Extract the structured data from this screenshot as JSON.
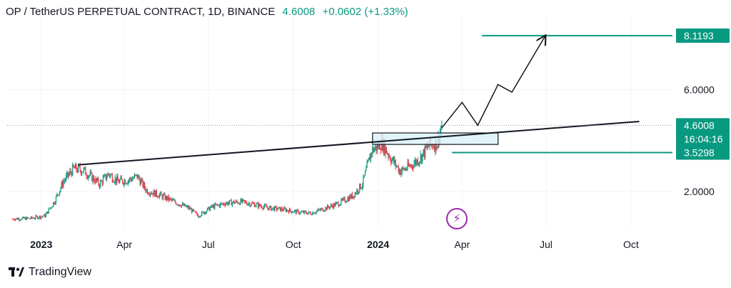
{
  "header": {
    "symbol": "OP / TetherUS PERPETUAL CONTRACT, 1D, BINANCE",
    "price": "4.6008",
    "change": "+0.0602 (+1.33%)"
  },
  "footer": {
    "brand": "TradingView",
    "logo_icon": "tradingview-logo-icon"
  },
  "colors": {
    "up": "#089981",
    "down": "#f23645",
    "teal": "#089981",
    "text": "#131722",
    "grid": "#f0f3fa",
    "box_fill": "#d8f1f7",
    "bolt": "#9c27b0"
  },
  "chart_data": {
    "type": "candlestick",
    "title": "",
    "x_tick_labels": [
      "2023",
      "Apr",
      "Jul",
      "Oct",
      "2024",
      "Apr",
      "Jul",
      "Oct"
    ],
    "y_tick_labels": [
      "6.0000",
      "2.0000"
    ],
    "y_ticks": [
      6.0,
      2.0
    ],
    "price_labels": {
      "target": "8.1193",
      "last_price": "4.6008",
      "countdown": "16:04:16",
      "support": "3.5298"
    },
    "levels": {
      "target": 8.1193,
      "last": 4.6008,
      "support": 3.5298
    },
    "price_path": [
      [
        "2022-12-01",
        0.93
      ],
      [
        "2022-12-20",
        0.95
      ],
      [
        "2023-01-05",
        1.05
      ],
      [
        "2023-01-15",
        1.6
      ],
      [
        "2023-01-25",
        2.4
      ],
      [
        "2023-02-05",
        2.9
      ],
      [
        "2023-02-15",
        2.85
      ],
      [
        "2023-02-25",
        2.55
      ],
      [
        "2023-03-05",
        2.3
      ],
      [
        "2023-03-15",
        2.7
      ],
      [
        "2023-03-25",
        2.4
      ],
      [
        "2023-04-05",
        2.45
      ],
      [
        "2023-04-15",
        2.6
      ],
      [
        "2023-04-25",
        2.05
      ],
      [
        "2023-05-10",
        1.85
      ],
      [
        "2023-05-25",
        1.6
      ],
      [
        "2023-06-10",
        1.35
      ],
      [
        "2023-06-20",
        1.05
      ],
      [
        "2023-07-05",
        1.4
      ],
      [
        "2023-07-20",
        1.55
      ],
      [
        "2023-08-05",
        1.6
      ],
      [
        "2023-08-20",
        1.5
      ],
      [
        "2023-09-05",
        1.35
      ],
      [
        "2023-09-20",
        1.3
      ],
      [
        "2023-10-05",
        1.2
      ],
      [
        "2023-10-20",
        1.15
      ],
      [
        "2023-11-05",
        1.35
      ],
      [
        "2023-11-20",
        1.55
      ],
      [
        "2023-12-05",
        1.85
      ],
      [
        "2023-12-15",
        2.3
      ],
      [
        "2023-12-25",
        3.6
      ],
      [
        "2024-01-05",
        3.9
      ],
      [
        "2024-01-15",
        3.3
      ],
      [
        "2024-01-25",
        2.8
      ],
      [
        "2024-02-05",
        3.0
      ],
      [
        "2024-02-15",
        3.3
      ],
      [
        "2024-02-25",
        3.8
      ],
      [
        "2024-03-05",
        3.9
      ],
      [
        "2024-03-10",
        4.6
      ]
    ],
    "trendline": {
      "from": [
        "2023-02-10",
        3.05
      ],
      "to": [
        "2024-10-10",
        4.75
      ]
    },
    "demand_zone": {
      "from_date": "2023-12-26",
      "to_date": "2024-05-10",
      "top": 4.3,
      "bottom": 3.85
    },
    "projection_path": [
      [
        "2024-03-10",
        4.5
      ],
      [
        "2024-04-01",
        5.5
      ],
      [
        "2024-04-18",
        4.6
      ],
      [
        "2024-05-10",
        6.2
      ],
      [
        "2024-05-25",
        5.9
      ],
      [
        "2024-06-30",
        8.1
      ]
    ],
    "x_range": [
      "2022-11-25",
      "2024-11-15"
    ],
    "y_range": [
      0.6,
      8.9
    ]
  }
}
